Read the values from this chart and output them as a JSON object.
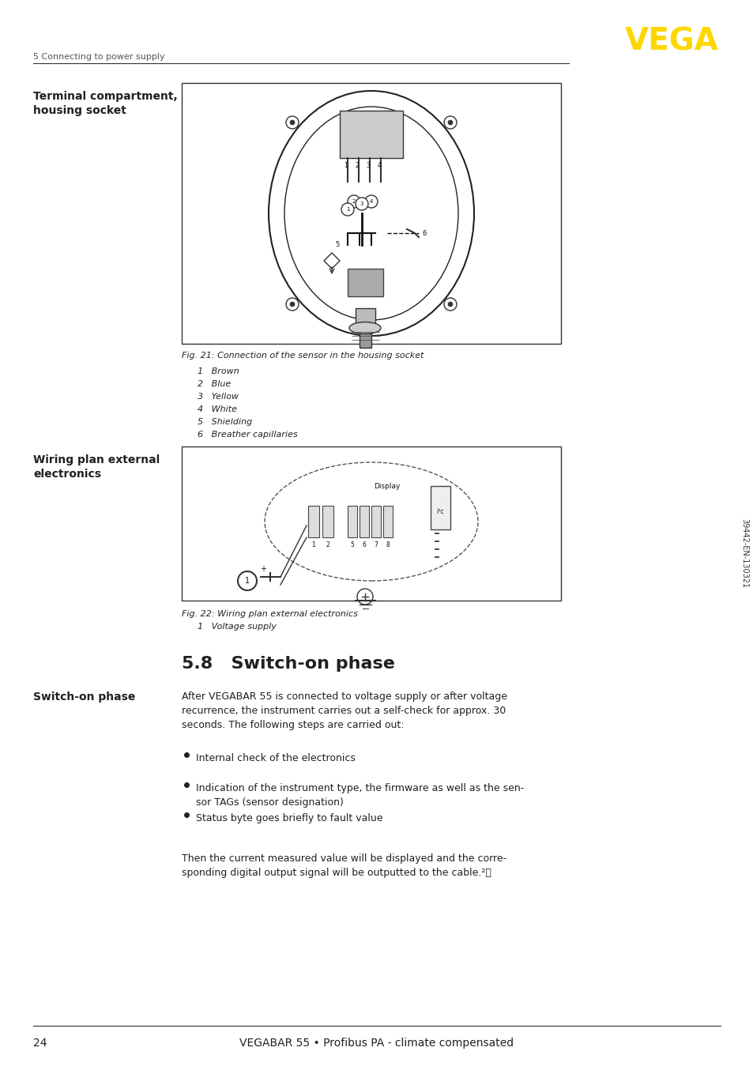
{
  "page_number": "24",
  "footer_text": "VEGABAR 55 • Profibus PA - climate compensated",
  "header_section": "5 Connecting to power supply",
  "logo_text": "VEGA",
  "logo_color": "#FFD700",
  "section_title": "Terminal compartment,\nhousing socket",
  "section2_title": "Wiring plan external\nelectronics",
  "section3_title": "Switch-on phase",
  "fig21_caption": "Fig. 21: Connection of the sensor in the housing socket",
  "fig21_items": [
    "1   Brown",
    "2   Blue",
    "3   Yellow",
    "4   White",
    "5   Shielding",
    "6   Breather capillaries"
  ],
  "fig22_caption": "Fig. 22: Wiring plan external electronics",
  "fig22_items": [
    "1   Voltage supply"
  ],
  "chapter_heading": "5.8   Switch-on phase",
  "switch_on_text": "After VEGABAR 55 is connected to voltage supply or after voltage\nrecurrence, the instrument carries out a self-check for approx. 30\nseconds. The following steps are carried out:",
  "bullet_points": [
    "Internal check of the electronics",
    "Indication of the instrument type, the firmware as well as the sen-\nsor TAGs (sensor designation)",
    "Status byte goes briefly to fault value"
  ],
  "final_text": "Then the current measured value will be displayed and the corre-\nsponding digital output signal will be outputted to the cable.²⧹",
  "bg_color": "#ffffff",
  "text_color": "#231f20",
  "border_color": "#000000"
}
